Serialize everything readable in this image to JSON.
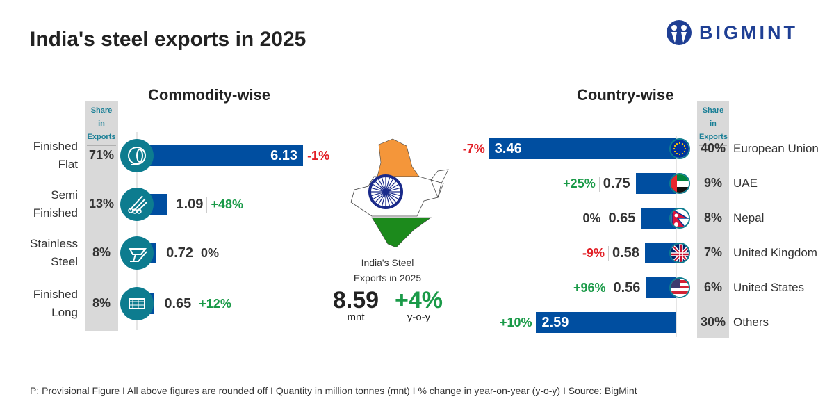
{
  "title": "India's steel exports in 2025",
  "logo": {
    "text": "BIGMINT",
    "color": "#1f3f94"
  },
  "colors": {
    "bar": "#004ea0",
    "icon_circle": "#0d7c8f",
    "positive": "#1a9a48",
    "negative": "#e21f26",
    "share_column": "#d9d9d9"
  },
  "chart_data": [
    {
      "type": "bar",
      "orientation": "horizontal",
      "title": "Commodity-wise",
      "share_header": "Share in Exports",
      "unit": "mnt",
      "categories": [
        "Finished Flat",
        "Semi Finished",
        "Stainless Steel",
        "Finished Long"
      ],
      "label_lines": [
        [
          "Finished",
          "Flat"
        ],
        [
          "Semi",
          "Finished"
        ],
        [
          "Stainless",
          "Steel"
        ],
        [
          "Finished",
          "Long"
        ]
      ],
      "icons": [
        "coil-icon",
        "pipes-icon",
        "beam-icon",
        "bars-bundle-icon"
      ],
      "values": [
        6.13,
        1.09,
        0.72,
        0.65
      ],
      "value_labels": [
        "6.13",
        "1.09",
        "0.72",
        "0.65"
      ],
      "shares": [
        "71%",
        "13%",
        "8%",
        "8%"
      ],
      "yoy": [
        "-1%",
        "+48%",
        "0%",
        "+12%"
      ]
    },
    {
      "type": "bar",
      "orientation": "horizontal",
      "title": "Country-wise",
      "share_header": "Share in Exports",
      "unit": "mnt",
      "categories": [
        "European Union",
        "UAE",
        "Nepal",
        "United Kingdom",
        "United States",
        "Others"
      ],
      "icons": [
        "eu-flag-icon",
        "uae-flag-icon",
        "nepal-flag-icon",
        "uk-flag-icon",
        "us-flag-icon",
        ""
      ],
      "values": [
        3.46,
        0.75,
        0.65,
        0.58,
        0.56,
        2.59
      ],
      "value_labels": [
        "3.46",
        "0.75",
        "0.65",
        "0.58",
        "0.56",
        "2.59"
      ],
      "shares": [
        "40%",
        "9%",
        "8%",
        "7%",
        "6%",
        "30%"
      ],
      "yoy": [
        "-7%",
        "+25%",
        "0%",
        "-9%",
        "+96%",
        "+10%"
      ]
    }
  ],
  "summary": {
    "caption_line1": "India's Steel",
    "caption_line2": "Exports in 2025",
    "total": "8.59",
    "total_unit": "mnt",
    "change": "+4%",
    "change_unit": "y-o-y"
  },
  "footer": "P: Provisional Figure  I  All above figures are rounded off  I  Quantity in million tonnes (mnt)  I  % change in year-on-year (y-o-y)  I  Source: BigMint"
}
